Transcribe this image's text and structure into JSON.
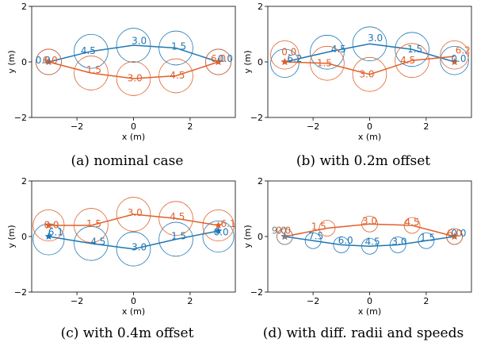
{
  "colors": {
    "blue": "#1f77b4",
    "orange": "#e0602a"
  },
  "chart_data": [
    {
      "type": "line",
      "caption": "(a) nominal case",
      "xlabel": "x (m)",
      "ylabel": "y (m)",
      "xlim": [
        -3.6,
        3.6
      ],
      "ylim": [
        -2,
        2
      ],
      "xticks": [
        -2,
        0,
        2
      ],
      "yticks": [
        -2,
        0,
        2
      ],
      "series": [
        {
          "color": "blue",
          "start": [
            -3,
            0
          ],
          "end": [
            3,
            0
          ],
          "path": [
            [
              -3,
              0
            ],
            [
              -1.5,
              0.38
            ],
            [
              0,
              0.6
            ],
            [
              1.5,
              0.5
            ],
            [
              3,
              0
            ]
          ],
          "circles": [
            {
              "x": -3.0,
              "y": 0.0,
              "r": 0.45,
              "label": "0.0",
              "lx": -3.2,
              "ly": 0.05
            },
            {
              "x": -1.5,
              "y": 0.38,
              "r": 0.6,
              "label": "4.5",
              "lx": -1.6,
              "ly": 0.38
            },
            {
              "x": 0.0,
              "y": 0.6,
              "r": 0.6,
              "label": "3.0",
              "lx": 0.2,
              "ly": 0.75
            },
            {
              "x": 1.5,
              "y": 0.5,
              "r": 0.6,
              "label": "1.5",
              "lx": 1.6,
              "ly": 0.55
            },
            {
              "x": 3.0,
              "y": 0.0,
              "r": 0.45,
              "label": "0.0",
              "lx": 3.25,
              "ly": 0.1
            }
          ]
        },
        {
          "color": "orange",
          "start": [
            -3,
            0
          ],
          "end": [
            3,
            0
          ],
          "path": [
            [
              -3,
              0
            ],
            [
              -1.5,
              -0.4
            ],
            [
              0,
              -0.6
            ],
            [
              1.5,
              -0.5
            ],
            [
              3,
              0
            ]
          ],
          "circles": [
            {
              "x": -3.0,
              "y": 0.0,
              "r": 0.45,
              "label": "6.0",
              "lx": -2.95,
              "ly": 0.05
            },
            {
              "x": -1.5,
              "y": -0.4,
              "r": 0.6,
              "label": "1.5",
              "lx": -1.4,
              "ly": -0.3
            },
            {
              "x": 0.0,
              "y": -0.6,
              "r": 0.6,
              "label": "3.0",
              "lx": 0.05,
              "ly": -0.6
            },
            {
              "x": 1.5,
              "y": -0.5,
              "r": 0.6,
              "label": "4.5",
              "lx": 1.55,
              "ly": -0.5
            },
            {
              "x": 3.0,
              "y": 0.0,
              "r": 0.45,
              "label": "6.0",
              "lx": 3.0,
              "ly": 0.1
            }
          ]
        }
      ]
    },
    {
      "type": "line",
      "caption": "(b) with 0.2m offset",
      "xlabel": "x (m)",
      "ylabel": "y (m)",
      "xlim": [
        -3.6,
        3.6
      ],
      "ylim": [
        -2,
        2
      ],
      "xticks": [
        -2,
        0,
        2
      ],
      "yticks": [
        -2,
        0,
        2
      ],
      "series": [
        {
          "color": "blue",
          "start": [
            -3,
            0
          ],
          "end": [
            3,
            0
          ],
          "path": [
            [
              -3,
              0
            ],
            [
              -1.5,
              0.35
            ],
            [
              0,
              0.65
            ],
            [
              1.5,
              0.45
            ],
            [
              3,
              0
            ]
          ],
          "circles": [
            {
              "x": -3.0,
              "y": -0.05,
              "r": 0.5,
              "label": "6.2",
              "lx": -2.65,
              "ly": 0.1
            },
            {
              "x": -1.5,
              "y": 0.35,
              "r": 0.6,
              "label": "4.5",
              "lx": -1.1,
              "ly": 0.45
            },
            {
              "x": 0.0,
              "y": 0.65,
              "r": 0.6,
              "label": "3.0",
              "lx": 0.2,
              "ly": 0.85
            },
            {
              "x": 1.5,
              "y": 0.45,
              "r": 0.6,
              "label": "1.5",
              "lx": 1.6,
              "ly": 0.45
            },
            {
              "x": 3.0,
              "y": 0.05,
              "r": 0.5,
              "label": "0.0",
              "lx": 3.15,
              "ly": 0.1
            }
          ]
        },
        {
          "color": "orange",
          "start": [
            -3,
            0
          ],
          "end": [
            3,
            0
          ],
          "path": [
            [
              -3,
              0
            ],
            [
              -1.5,
              -0.05
            ],
            [
              0,
              -0.45
            ],
            [
              1.5,
              0.05
            ],
            [
              3,
              0.2
            ]
          ],
          "circles": [
            {
              "x": -3.0,
              "y": 0.25,
              "r": 0.5,
              "label": "0.0",
              "lx": -2.85,
              "ly": 0.35
            },
            {
              "x": -1.5,
              "y": -0.05,
              "r": 0.6,
              "label": "1.5",
              "lx": -1.6,
              "ly": -0.05
            },
            {
              "x": 0.0,
              "y": -0.45,
              "r": 0.6,
              "label": "3.0",
              "lx": -0.1,
              "ly": -0.45
            },
            {
              "x": 1.5,
              "y": 0.05,
              "r": 0.6,
              "label": "4.5",
              "lx": 1.35,
              "ly": 0.05
            },
            {
              "x": 3.0,
              "y": 0.25,
              "r": 0.5,
              "label": "6.2",
              "lx": 3.3,
              "ly": 0.4
            }
          ]
        }
      ]
    },
    {
      "type": "line",
      "caption": "(c) with 0.4m offset",
      "xlabel": "x (m)",
      "ylabel": "y (m)",
      "xlim": [
        -3.6,
        3.6
      ],
      "ylim": [
        -2,
        2
      ],
      "xticks": [
        -2,
        0,
        2
      ],
      "yticks": [
        -2,
        0,
        2
      ],
      "series": [
        {
          "color": "blue",
          "start": [
            -3,
            0
          ],
          "end": [
            3,
            0.2
          ],
          "path": [
            [
              -3,
              0
            ],
            [
              -1.5,
              -0.25
            ],
            [
              0,
              -0.45
            ],
            [
              1.5,
              -0.1
            ],
            [
              3,
              0.2
            ]
          ],
          "circles": [
            {
              "x": -3.0,
              "y": -0.1,
              "r": 0.55,
              "label": "6.1",
              "lx": -2.75,
              "ly": 0.15
            },
            {
              "x": -1.5,
              "y": -0.25,
              "r": 0.6,
              "label": "4.5",
              "lx": -1.25,
              "ly": -0.2
            },
            {
              "x": 0.0,
              "y": -0.45,
              "r": 0.6,
              "label": "3.0",
              "lx": 0.2,
              "ly": -0.4
            },
            {
              "x": 1.5,
              "y": -0.1,
              "r": 0.6,
              "label": "1.5",
              "lx": 1.6,
              "ly": 0.0
            },
            {
              "x": 3.0,
              "y": 0.0,
              "r": 0.55,
              "label": "0.0",
              "lx": 3.1,
              "ly": 0.15
            }
          ]
        },
        {
          "color": "orange",
          "start": [
            -3,
            0.4
          ],
          "end": [
            3,
            0.4
          ],
          "path": [
            [
              -3,
              0.4
            ],
            [
              -1.5,
              0.4
            ],
            [
              0,
              0.8
            ],
            [
              1.5,
              0.65
            ],
            [
              3,
              0.4
            ]
          ],
          "circles": [
            {
              "x": -3.0,
              "y": 0.4,
              "r": 0.55,
              "label": "0.0",
              "lx": -2.9,
              "ly": 0.4
            },
            {
              "x": -1.5,
              "y": 0.4,
              "r": 0.6,
              "label": "1.5",
              "lx": -1.4,
              "ly": 0.45
            },
            {
              "x": 0.0,
              "y": 0.8,
              "r": 0.6,
              "label": "3.0",
              "lx": 0.05,
              "ly": 0.85
            },
            {
              "x": 1.5,
              "y": 0.65,
              "r": 0.6,
              "label": "4.5",
              "lx": 1.55,
              "ly": 0.7
            },
            {
              "x": 3.0,
              "y": 0.4,
              "r": 0.55,
              "label": "6.1",
              "lx": 3.35,
              "ly": 0.45
            }
          ]
        }
      ]
    },
    {
      "type": "line",
      "caption": "(d) with diff. radii and speeds",
      "xlabel": "x (m)",
      "ylabel": "y (m)",
      "xlim": [
        -3.6,
        3.6
      ],
      "ylim": [
        -2,
        2
      ],
      "xticks": [
        -2,
        0,
        2
      ],
      "yticks": [
        -2,
        0,
        2
      ],
      "series": [
        {
          "color": "blue",
          "start": [
            -3,
            0
          ],
          "end": [
            3,
            0
          ],
          "path": [
            [
              -3,
              0
            ],
            [
              -2,
              -0.15
            ],
            [
              -1,
              -0.3
            ],
            [
              0,
              -0.35
            ],
            [
              1,
              -0.3
            ],
            [
              2,
              -0.15
            ],
            [
              3,
              0
            ]
          ],
          "circles": [
            {
              "x": -2.0,
              "y": -0.15,
              "r": 0.28,
              "label": "7.5",
              "lx": -1.9,
              "ly": 0.0
            },
            {
              "x": -1.0,
              "y": -0.3,
              "r": 0.28,
              "label": "6.0",
              "lx": -0.85,
              "ly": -0.15
            },
            {
              "x": 0.0,
              "y": -0.35,
              "r": 0.28,
              "label": "4.5",
              "lx": 0.1,
              "ly": -0.2
            },
            {
              "x": 1.0,
              "y": -0.3,
              "r": 0.28,
              "label": "3.0",
              "lx": 1.05,
              "ly": -0.2
            },
            {
              "x": 2.0,
              "y": -0.15,
              "r": 0.28,
              "label": "1.5",
              "lx": 2.05,
              "ly": -0.05
            },
            {
              "x": 3.0,
              "y": 0.0,
              "r": 0.28,
              "label": "0.0",
              "lx": 3.15,
              "ly": 0.1
            }
          ]
        },
        {
          "color": "orange",
          "start": [
            -3,
            0
          ],
          "end": [
            3,
            0
          ],
          "path": [
            [
              -3,
              0
            ],
            [
              -1.5,
              0.3
            ],
            [
              0,
              0.45
            ],
            [
              1.5,
              0.4
            ],
            [
              3,
              0
            ]
          ],
          "circles": [
            {
              "x": -3.0,
              "y": 0.0,
              "r": 0.28,
              "label": "0.0",
              "lx": -3.05,
              "ly": 0.2
            },
            {
              "x": -1.5,
              "y": 0.3,
              "r": 0.28,
              "label": "1.5",
              "lx": -1.8,
              "ly": 0.35
            },
            {
              "x": 0.0,
              "y": 0.45,
              "r": 0.28,
              "label": "3.0",
              "lx": 0.0,
              "ly": 0.55
            },
            {
              "x": 1.5,
              "y": 0.4,
              "r": 0.28,
              "label": "4.5",
              "lx": 1.5,
              "ly": 0.5
            },
            {
              "x": 3.0,
              "y": 0.0,
              "r": 0.28,
              "label": "6.0",
              "lx": 3.0,
              "ly": 0.1
            }
          ]
        },
        {
          "color": "gray",
          "start": [
            -3,
            0
          ],
          "end": [
            -3,
            0
          ],
          "path": [],
          "circles": [
            {
              "x": -3.0,
              "y": 0.0,
              "r": 0.28,
              "label": "9.0",
              "lx": -3.2,
              "ly": 0.2
            }
          ]
        }
      ]
    }
  ]
}
